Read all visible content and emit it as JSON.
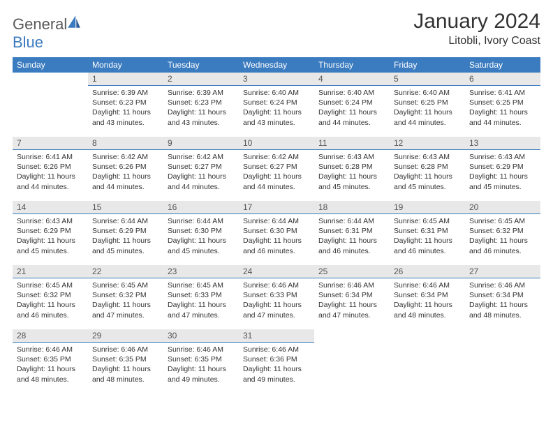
{
  "brand": {
    "text1": "General",
    "text2": "Blue"
  },
  "colors": {
    "header_bg": "#3b7bbf",
    "header_text": "#ffffff",
    "daynum_bg": "#e8e8e8",
    "daynum_border": "#3b7bbf",
    "body_text": "#333333",
    "logo_gray": "#5a5a5a",
    "logo_blue": "#3b7bbf"
  },
  "title": "January 2024",
  "location": "Litobli, Ivory Coast",
  "weekdays": [
    "Sunday",
    "Monday",
    "Tuesday",
    "Wednesday",
    "Thursday",
    "Friday",
    "Saturday"
  ],
  "weeks": [
    [
      {
        "n": "",
        "sr": "",
        "ss": "",
        "dl": ""
      },
      {
        "n": "1",
        "sr": "Sunrise: 6:39 AM",
        "ss": "Sunset: 6:23 PM",
        "dl": "Daylight: 11 hours and 43 minutes."
      },
      {
        "n": "2",
        "sr": "Sunrise: 6:39 AM",
        "ss": "Sunset: 6:23 PM",
        "dl": "Daylight: 11 hours and 43 minutes."
      },
      {
        "n": "3",
        "sr": "Sunrise: 6:40 AM",
        "ss": "Sunset: 6:24 PM",
        "dl": "Daylight: 11 hours and 43 minutes."
      },
      {
        "n": "4",
        "sr": "Sunrise: 6:40 AM",
        "ss": "Sunset: 6:24 PM",
        "dl": "Daylight: 11 hours and 44 minutes."
      },
      {
        "n": "5",
        "sr": "Sunrise: 6:40 AM",
        "ss": "Sunset: 6:25 PM",
        "dl": "Daylight: 11 hours and 44 minutes."
      },
      {
        "n": "6",
        "sr": "Sunrise: 6:41 AM",
        "ss": "Sunset: 6:25 PM",
        "dl": "Daylight: 11 hours and 44 minutes."
      }
    ],
    [
      {
        "n": "7",
        "sr": "Sunrise: 6:41 AM",
        "ss": "Sunset: 6:26 PM",
        "dl": "Daylight: 11 hours and 44 minutes."
      },
      {
        "n": "8",
        "sr": "Sunrise: 6:42 AM",
        "ss": "Sunset: 6:26 PM",
        "dl": "Daylight: 11 hours and 44 minutes."
      },
      {
        "n": "9",
        "sr": "Sunrise: 6:42 AM",
        "ss": "Sunset: 6:27 PM",
        "dl": "Daylight: 11 hours and 44 minutes."
      },
      {
        "n": "10",
        "sr": "Sunrise: 6:42 AM",
        "ss": "Sunset: 6:27 PM",
        "dl": "Daylight: 11 hours and 44 minutes."
      },
      {
        "n": "11",
        "sr": "Sunrise: 6:43 AM",
        "ss": "Sunset: 6:28 PM",
        "dl": "Daylight: 11 hours and 45 minutes."
      },
      {
        "n": "12",
        "sr": "Sunrise: 6:43 AM",
        "ss": "Sunset: 6:28 PM",
        "dl": "Daylight: 11 hours and 45 minutes."
      },
      {
        "n": "13",
        "sr": "Sunrise: 6:43 AM",
        "ss": "Sunset: 6:29 PM",
        "dl": "Daylight: 11 hours and 45 minutes."
      }
    ],
    [
      {
        "n": "14",
        "sr": "Sunrise: 6:43 AM",
        "ss": "Sunset: 6:29 PM",
        "dl": "Daylight: 11 hours and 45 minutes."
      },
      {
        "n": "15",
        "sr": "Sunrise: 6:44 AM",
        "ss": "Sunset: 6:29 PM",
        "dl": "Daylight: 11 hours and 45 minutes."
      },
      {
        "n": "16",
        "sr": "Sunrise: 6:44 AM",
        "ss": "Sunset: 6:30 PM",
        "dl": "Daylight: 11 hours and 45 minutes."
      },
      {
        "n": "17",
        "sr": "Sunrise: 6:44 AM",
        "ss": "Sunset: 6:30 PM",
        "dl": "Daylight: 11 hours and 46 minutes."
      },
      {
        "n": "18",
        "sr": "Sunrise: 6:44 AM",
        "ss": "Sunset: 6:31 PM",
        "dl": "Daylight: 11 hours and 46 minutes."
      },
      {
        "n": "19",
        "sr": "Sunrise: 6:45 AM",
        "ss": "Sunset: 6:31 PM",
        "dl": "Daylight: 11 hours and 46 minutes."
      },
      {
        "n": "20",
        "sr": "Sunrise: 6:45 AM",
        "ss": "Sunset: 6:32 PM",
        "dl": "Daylight: 11 hours and 46 minutes."
      }
    ],
    [
      {
        "n": "21",
        "sr": "Sunrise: 6:45 AM",
        "ss": "Sunset: 6:32 PM",
        "dl": "Daylight: 11 hours and 46 minutes."
      },
      {
        "n": "22",
        "sr": "Sunrise: 6:45 AM",
        "ss": "Sunset: 6:32 PM",
        "dl": "Daylight: 11 hours and 47 minutes."
      },
      {
        "n": "23",
        "sr": "Sunrise: 6:45 AM",
        "ss": "Sunset: 6:33 PM",
        "dl": "Daylight: 11 hours and 47 minutes."
      },
      {
        "n": "24",
        "sr": "Sunrise: 6:46 AM",
        "ss": "Sunset: 6:33 PM",
        "dl": "Daylight: 11 hours and 47 minutes."
      },
      {
        "n": "25",
        "sr": "Sunrise: 6:46 AM",
        "ss": "Sunset: 6:34 PM",
        "dl": "Daylight: 11 hours and 47 minutes."
      },
      {
        "n": "26",
        "sr": "Sunrise: 6:46 AM",
        "ss": "Sunset: 6:34 PM",
        "dl": "Daylight: 11 hours and 48 minutes."
      },
      {
        "n": "27",
        "sr": "Sunrise: 6:46 AM",
        "ss": "Sunset: 6:34 PM",
        "dl": "Daylight: 11 hours and 48 minutes."
      }
    ],
    [
      {
        "n": "28",
        "sr": "Sunrise: 6:46 AM",
        "ss": "Sunset: 6:35 PM",
        "dl": "Daylight: 11 hours and 48 minutes."
      },
      {
        "n": "29",
        "sr": "Sunrise: 6:46 AM",
        "ss": "Sunset: 6:35 PM",
        "dl": "Daylight: 11 hours and 48 minutes."
      },
      {
        "n": "30",
        "sr": "Sunrise: 6:46 AM",
        "ss": "Sunset: 6:35 PM",
        "dl": "Daylight: 11 hours and 49 minutes."
      },
      {
        "n": "31",
        "sr": "Sunrise: 6:46 AM",
        "ss": "Sunset: 6:36 PM",
        "dl": "Daylight: 11 hours and 49 minutes."
      },
      {
        "n": "",
        "sr": "",
        "ss": "",
        "dl": ""
      },
      {
        "n": "",
        "sr": "",
        "ss": "",
        "dl": ""
      },
      {
        "n": "",
        "sr": "",
        "ss": "",
        "dl": ""
      }
    ]
  ]
}
